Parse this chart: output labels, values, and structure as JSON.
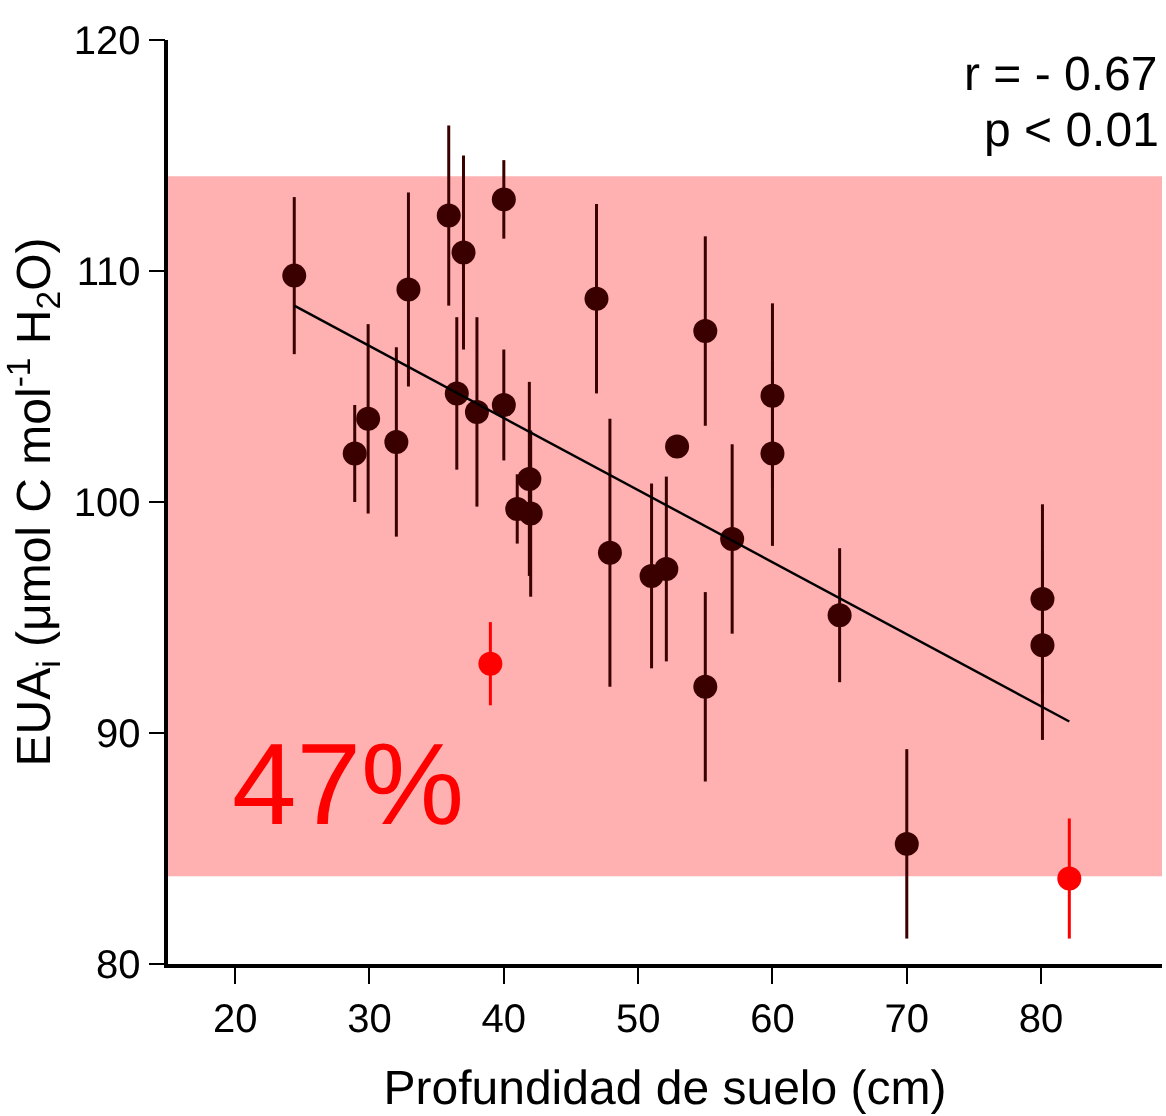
{
  "chart_data": {
    "type": "scatter",
    "xlabel": "Profundidad de suelo (cm)",
    "ylabel": "EUA$_{i}$ (μmol C mol$^{-1}$ H$_{2}$O)",
    "xlim": [
      15,
      89
    ],
    "ylim": [
      80,
      120
    ],
    "xticks": [
      20,
      30,
      40,
      50,
      60,
      70,
      80
    ],
    "yticks": [
      80,
      90,
      100,
      110,
      120
    ],
    "grid": false,
    "marker": "circle",
    "annotations": [
      "r = - 0.67",
      "p < 0.01",
      "47%"
    ],
    "bands": [
      {
        "axis": "y",
        "from": 83.8,
        "to": 114.1,
        "color": "#ffb0b0"
      }
    ],
    "series": [
      {
        "color": "#3a0000",
        "x": [
          24.4,
          35.9,
          40.0,
          37.0,
          32.9,
          46.9,
          29.9,
          28.9,
          32.0,
          36.5,
          38.0,
          40.0,
          41.9,
          41.0,
          42.0,
          47.9,
          51.0,
          52.1,
          55.0,
          60.0,
          60.0,
          52.9,
          57.0,
          55.0,
          65.0,
          80.1,
          80.1,
          70.0
        ],
        "values": [
          109.8,
          112.4,
          113.1,
          110.8,
          109.2,
          108.8,
          103.6,
          102.1,
          102.6,
          104.7,
          103.9,
          104.2,
          101.0,
          99.7,
          99.5,
          97.8,
          96.8,
          97.1,
          107.4,
          104.6,
          102.1,
          102.4,
          98.4,
          92.0,
          95.1,
          95.8,
          93.8,
          85.2
        ],
        "errors": [
          3.4,
          3.9,
          1.7,
          4.2,
          4.2,
          4.1,
          4.1,
          2.1,
          4.1,
          3.3,
          4.1,
          2.4,
          4.2,
          1.5,
          3.6,
          5.8,
          4.0,
          4.0,
          4.1,
          4.0,
          4.0,
          null,
          4.1,
          4.1,
          2.9,
          4.1,
          4.1,
          4.1
        ]
      },
      {
        "color": "#ff0000",
        "x": [
          39.0,
          82.1
        ],
        "values": [
          93.0,
          83.7
        ],
        "errors": [
          1.8,
          2.6
        ]
      },
      {
        "type": "line",
        "color": "#000000",
        "x": [
          24.4,
          82.1
        ],
        "values": [
          108.5,
          90.5
        ],
        "marker": "none"
      }
    ]
  }
}
